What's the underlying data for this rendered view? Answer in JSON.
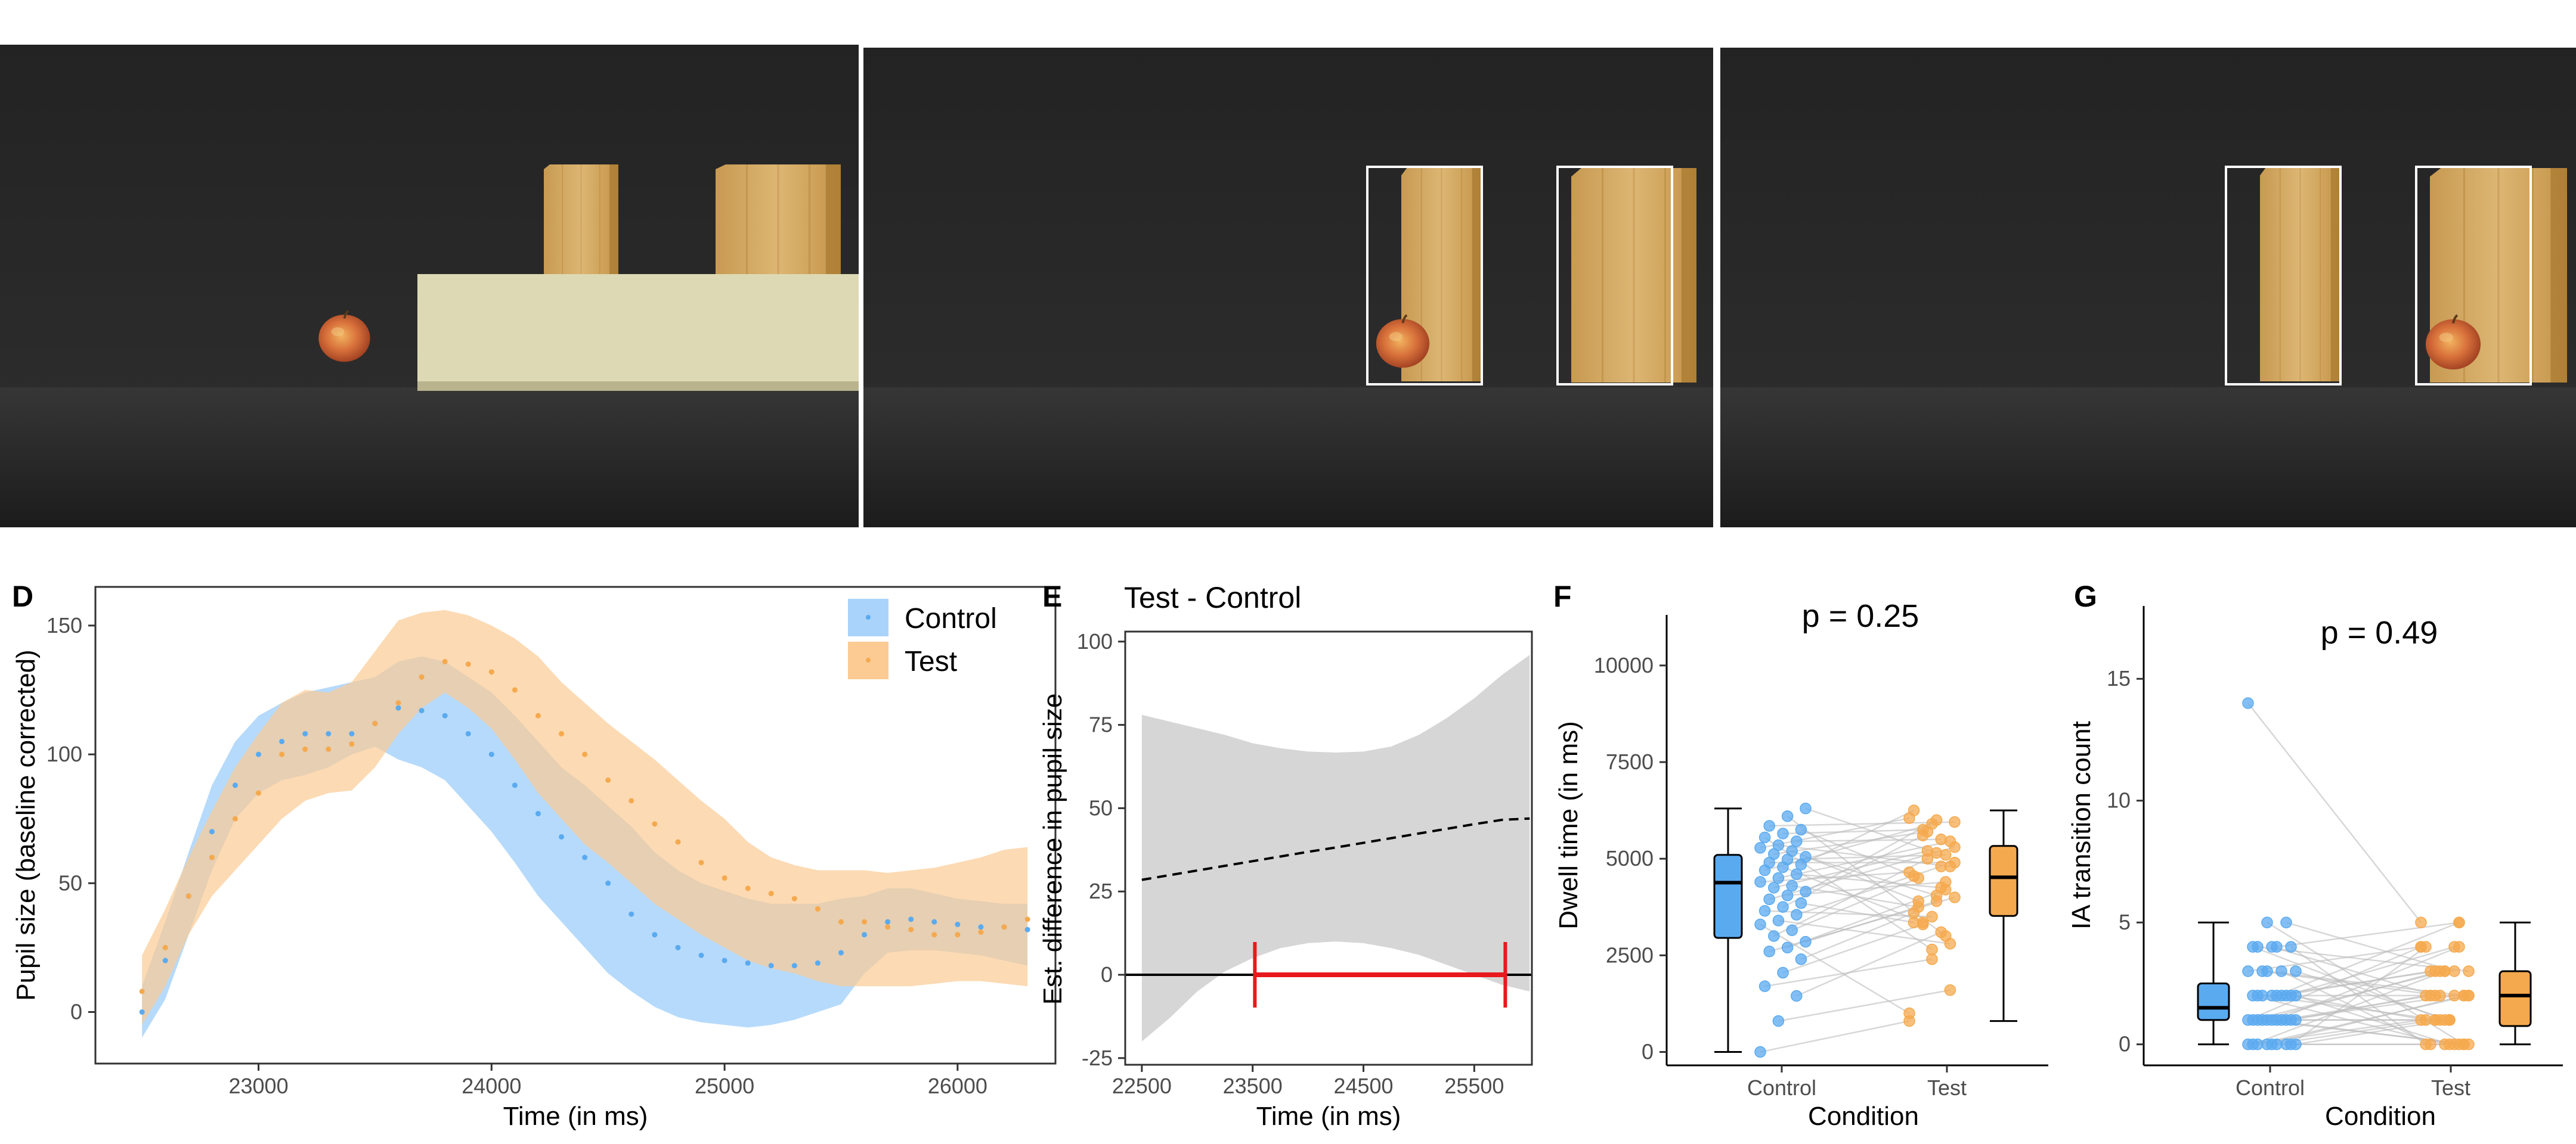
{
  "colors": {
    "control": "#5AAAF0",
    "control_band": "#A9D3FA",
    "test": "#F5A94E",
    "test_band": "#FBCB93",
    "diff_band": "#D6D6D6",
    "sig_bar": "#E8191C",
    "axis": "#333333",
    "tick_text": "#4D4D4D"
  },
  "photos": [
    {
      "description_icon": "apple-occluder-scene-icon"
    },
    {
      "description_icon": "apple-left-board-scene-icon"
    },
    {
      "description_icon": "apple-right-board-scene-icon"
    }
  ],
  "chart_data": [
    {
      "panel_letter": "D",
      "type": "line",
      "title": "",
      "xlabel": "Time (in ms)",
      "ylabel": "Pupil size (baseline corrected)",
      "xlim": [
        22300,
        26420
      ],
      "ylim": [
        -20,
        165
      ],
      "xticks": [
        23000,
        24000,
        25000,
        26000
      ],
      "yticks": [
        0,
        50,
        100,
        150
      ],
      "legend_position": "top-right",
      "series": [
        {
          "name": "Control",
          "x": [
            22500,
            22600,
            22700,
            22800,
            22900,
            23000,
            23100,
            23200,
            23300,
            23400,
            23500,
            23600,
            23700,
            23800,
            23900,
            24000,
            24100,
            24200,
            24300,
            24400,
            24500,
            24600,
            24700,
            24800,
            24900,
            25000,
            25100,
            25200,
            25300,
            25400,
            25500,
            25600,
            25700,
            25800,
            25900,
            26000,
            26100,
            26200,
            26300
          ],
          "mean": [
            0,
            20,
            45,
            70,
            88,
            100,
            105,
            108,
            108,
            108,
            112,
            118,
            117,
            115,
            108,
            100,
            88,
            77,
            68,
            60,
            50,
            38,
            30,
            25,
            22,
            20,
            19,
            18,
            18,
            19,
            23,
            30,
            35,
            36,
            35,
            34,
            33,
            33,
            32
          ],
          "lower": [
            -10,
            5,
            30,
            55,
            75,
            85,
            90,
            92,
            95,
            100,
            103,
            98,
            95,
            90,
            80,
            70,
            58,
            45,
            35,
            25,
            15,
            8,
            2,
            -2,
            -4,
            -5,
            -6,
            -5,
            -3,
            0,
            3,
            15,
            23,
            24,
            24,
            23,
            22,
            20,
            18
          ],
          "upper": [
            10,
            35,
            62,
            88,
            105,
            115,
            120,
            124,
            126,
            128,
            130,
            136,
            138,
            136,
            130,
            124,
            115,
            105,
            95,
            88,
            80,
            72,
            62,
            55,
            50,
            47,
            44,
            42,
            42,
            42,
            44,
            45,
            48,
            48,
            46,
            44,
            43,
            42,
            42
          ]
        },
        {
          "name": "Test",
          "x": [
            22500,
            22600,
            22700,
            22800,
            22900,
            23000,
            23100,
            23200,
            23300,
            23400,
            23500,
            23600,
            23700,
            23800,
            23900,
            24000,
            24100,
            24200,
            24300,
            24400,
            24500,
            24600,
            24700,
            24800,
            24900,
            25000,
            25100,
            25200,
            25300,
            25400,
            25500,
            25600,
            25700,
            25800,
            25900,
            26000,
            26100,
            26200,
            26300
          ],
          "mean": [
            8,
            25,
            45,
            60,
            75,
            85,
            100,
            102,
            102,
            104,
            112,
            120,
            130,
            136,
            135,
            132,
            125,
            115,
            108,
            100,
            90,
            82,
            73,
            66,
            58,
            52,
            48,
            46,
            44,
            40,
            35,
            35,
            33,
            32,
            30,
            30,
            31,
            33,
            36
          ],
          "lower": [
            -5,
            10,
            30,
            45,
            55,
            65,
            75,
            82,
            85,
            86,
            95,
            108,
            118,
            124,
            118,
            110,
            98,
            85,
            75,
            65,
            58,
            50,
            42,
            36,
            30,
            25,
            20,
            17,
            15,
            12,
            10,
            10,
            10,
            10,
            11,
            12,
            12,
            11,
            10
          ],
          "upper": [
            22,
            40,
            60,
            78,
            95,
            108,
            120,
            125,
            124,
            128,
            140,
            152,
            155,
            156,
            154,
            150,
            145,
            138,
            128,
            120,
            112,
            105,
            98,
            90,
            82,
            75,
            66,
            60,
            57,
            55,
            55,
            55,
            54,
            55,
            56,
            58,
            60,
            63,
            64
          ]
        }
      ]
    },
    {
      "panel_letter": "E",
      "type": "line",
      "title": "Test - Control",
      "xlabel": "Time (in ms)",
      "ylabel": "Est. difference in pupil size",
      "xlim": [
        22350,
        26020
      ],
      "ylim": [
        -27,
        103
      ],
      "xticks": [
        22500,
        23500,
        24500,
        25500
      ],
      "yticks": [
        -25,
        0,
        25,
        50,
        75,
        100
      ],
      "series": [
        {
          "name": "",
          "x": [
            22500,
            22750,
            23000,
            23250,
            23500,
            23750,
            24000,
            24250,
            24500,
            24750,
            25000,
            25250,
            25500,
            25750,
            26000
          ],
          "estimate": [
            28.5,
            29.9,
            31.3,
            32.7,
            34.1,
            35.5,
            36.9,
            38.2,
            39.6,
            41.0,
            42.4,
            43.8,
            45.2,
            46.5,
            46.9
          ],
          "lower": [
            -20,
            -13,
            -5,
            1,
            5,
            8,
            9.5,
            10,
            9.5,
            8,
            6,
            3,
            0,
            -3,
            -5
          ],
          "upper": [
            78,
            76,
            74,
            72,
            69.5,
            68,
            67,
            66.7,
            67,
            68.5,
            72,
            77,
            83,
            90,
            96
          ]
        }
      ],
      "reference_line": 0,
      "significant_interval": [
        23520,
        25780
      ]
    },
    {
      "panel_letter": "F",
      "type": "scatter",
      "title": "p = 0.25",
      "xlabel": "Condition",
      "ylabel": "Dwell time (in ms)",
      "ylim": [
        -300,
        11000
      ],
      "yticks": [
        0,
        2500,
        5000,
        7500,
        10000
      ],
      "categories": [
        "Control",
        "Test"
      ],
      "boxes": [
        {
          "name": "Control",
          "min": 0,
          "q1": 2950,
          "median": 4380,
          "q3": 5100,
          "max": 6300
        },
        {
          "name": "Test",
          "min": 800,
          "q1": 3520,
          "median": 4520,
          "q3": 5330,
          "max": 6250
        }
      ],
      "pairs": [
        [
          0,
          800
        ],
        [
          800,
          1600
        ],
        [
          1450,
          3100
        ],
        [
          1700,
          2400
        ],
        [
          2050,
          3300
        ],
        [
          2400,
          3600
        ],
        [
          2600,
          4000
        ],
        [
          2700,
          4200
        ],
        [
          2850,
          3900
        ],
        [
          3000,
          5000
        ],
        [
          3150,
          4500
        ],
        [
          3300,
          1000
        ],
        [
          3400,
          2800
        ],
        [
          3550,
          4800
        ],
        [
          3650,
          3500
        ],
        [
          3750,
          5600
        ],
        [
          3850,
          3350
        ],
        [
          3950,
          5300
        ],
        [
          4050,
          4400
        ],
        [
          4150,
          6000
        ],
        [
          4250,
          5200
        ],
        [
          4300,
          3750
        ],
        [
          4400,
          4650
        ],
        [
          4500,
          5450
        ],
        [
          4600,
          4250
        ],
        [
          4700,
          5900
        ],
        [
          4780,
          3350
        ],
        [
          4850,
          6250
        ],
        [
          4900,
          4900
        ],
        [
          4980,
          5100
        ],
        [
          5050,
          4050
        ],
        [
          5120,
          5700
        ],
        [
          5200,
          3900
        ],
        [
          5280,
          6050
        ],
        [
          5350,
          4800
        ],
        [
          5450,
          5500
        ],
        [
          5550,
          2650
        ],
        [
          5650,
          5750
        ],
        [
          5750,
          4550
        ],
        [
          5850,
          5950
        ],
        [
          6100,
          3000
        ],
        [
          6300,
          5150
        ]
      ]
    },
    {
      "panel_letter": "G",
      "type": "scatter",
      "title": "p = 0.49",
      "xlabel": "Condition",
      "ylabel": "IA transition count",
      "ylim": [
        -0.3,
        17.5
      ],
      "yticks": [
        0,
        5,
        10,
        15
      ],
      "categories": [
        "Control",
        "Test"
      ],
      "boxes": [
        {
          "name": "Control",
          "min": 0,
          "q1": 1,
          "median": 1.5,
          "q3": 2.5,
          "max": 5
        },
        {
          "name": "Test",
          "min": 0,
          "q1": 0.75,
          "median": 2,
          "q3": 3,
          "max": 5
        }
      ],
      "pairs": [
        [
          14,
          5
        ],
        [
          5,
          0
        ],
        [
          5,
          3
        ],
        [
          4,
          1
        ],
        [
          4,
          2
        ],
        [
          4,
          0
        ],
        [
          4,
          3
        ],
        [
          4,
          5
        ],
        [
          3,
          1
        ],
        [
          3,
          2
        ],
        [
          3,
          0
        ],
        [
          3,
          4
        ],
        [
          3,
          2
        ],
        [
          2,
          4
        ],
        [
          2,
          0
        ],
        [
          2,
          3
        ],
        [
          2,
          1
        ],
        [
          2,
          2
        ],
        [
          2,
          5
        ],
        [
          2,
          0
        ],
        [
          2,
          1
        ],
        [
          2,
          3
        ],
        [
          1,
          4
        ],
        [
          1,
          0
        ],
        [
          1,
          2
        ],
        [
          1,
          3
        ],
        [
          1,
          1
        ],
        [
          1,
          2
        ],
        [
          1,
          0
        ],
        [
          1,
          4
        ],
        [
          1,
          1
        ],
        [
          1,
          3
        ],
        [
          1,
          2
        ],
        [
          0,
          1
        ],
        [
          0,
          2
        ],
        [
          0,
          0
        ],
        [
          0,
          3
        ],
        [
          0,
          1
        ],
        [
          0,
          4
        ],
        [
          0,
          2
        ],
        [
          0,
          0
        ],
        [
          0,
          1
        ]
      ]
    }
  ]
}
